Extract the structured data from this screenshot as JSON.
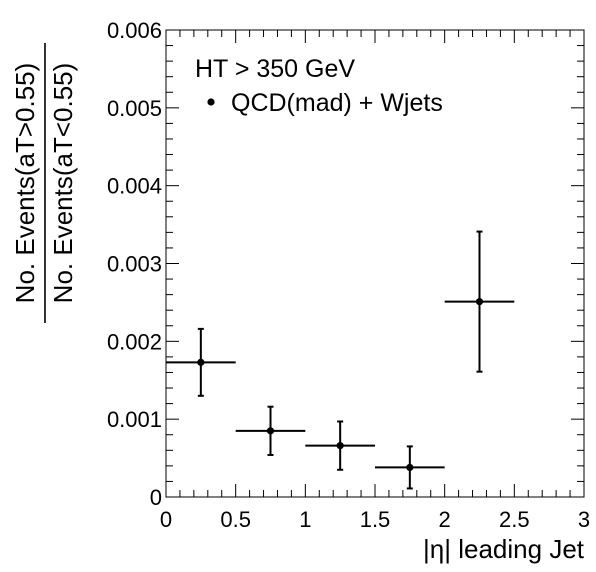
{
  "chart_data": {
    "type": "scatter",
    "x_label": "|η| leading Jet",
    "y_label_numerator": "No. Events(aT>0.55)",
    "y_label_denominator": "No. Events(aT<0.55)",
    "xlim": [
      0,
      3
    ],
    "ylim": [
      0,
      0.006
    ],
    "x_ticks": [
      "0",
      "0.5",
      "1",
      "1.5",
      "2",
      "2.5",
      "3"
    ],
    "y_ticks": [
      "0",
      "0.001",
      "0.002",
      "0.003",
      "0.004",
      "0.005",
      "0.006"
    ],
    "legend": {
      "header": "HT > 350 GeV",
      "entries": [
        "QCD(mad) + Wjets"
      ],
      "placement": "top-left"
    },
    "grid": false,
    "series": [
      {
        "name": "QCD(mad) + Wjets",
        "color": "#000000",
        "points": [
          {
            "x": 0.25,
            "x_err": 0.25,
            "y": 0.00173,
            "y_err": 0.00043
          },
          {
            "x": 0.75,
            "x_err": 0.25,
            "y": 0.00085,
            "y_err": 0.00031
          },
          {
            "x": 1.25,
            "x_err": 0.25,
            "y": 0.00066,
            "y_err": 0.00031
          },
          {
            "x": 1.75,
            "x_err": 0.25,
            "y": 0.00038,
            "y_err": 0.00027
          },
          {
            "x": 2.25,
            "x_err": 0.25,
            "y": 0.00251,
            "y_err": 0.0009
          }
        ]
      }
    ]
  }
}
